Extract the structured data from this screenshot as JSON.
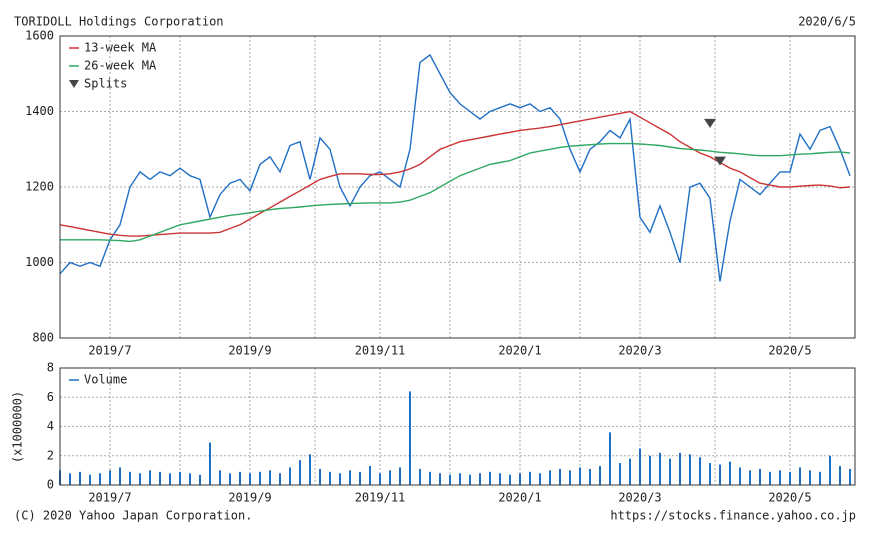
{
  "chart_data": [
    {
      "type": "line",
      "title": "TORIDOLL Holdings Corporation",
      "subtitle": "2020/6/5",
      "categories": [
        null,
        null,
        null,
        null,
        null,
        "2019/7",
        null,
        null,
        null,
        null,
        null,
        null,
        null,
        null,
        null,
        null,
        null,
        null,
        null,
        "2019/9",
        null,
        null,
        null,
        null,
        null,
        null,
        null,
        null,
        null,
        null,
        null,
        null,
        "2019/11",
        null,
        null,
        null,
        null,
        null,
        null,
        null,
        null,
        null,
        null,
        null,
        null,
        null,
        "2020/1",
        null,
        null,
        null,
        null,
        null,
        null,
        null,
        null,
        null,
        null,
        null,
        "2020/3",
        null,
        null,
        null,
        null,
        null,
        null,
        null,
        null,
        null,
        null,
        null,
        null,
        null,
        null,
        "2020/5",
        null,
        null,
        null,
        null,
        null,
        null
      ],
      "series": [
        {
          "color": "#1f6fc5",
          "values": [
            970,
            1000,
            990,
            1000,
            990,
            1060,
            1100,
            1200,
            1240,
            1220,
            1240,
            1230,
            1250,
            1230,
            1220,
            1120,
            1180,
            1210,
            1220,
            1190,
            1260,
            1280,
            1240,
            1310,
            1320,
            1220,
            1330,
            1300,
            1200,
            1150,
            1200,
            1230,
            1240,
            1220,
            1200,
            1300,
            1530,
            1550,
            1500,
            1450,
            1420,
            1400,
            1380,
            1400,
            1410,
            1420,
            1410,
            1420,
            1400,
            1410,
            1380,
            1300,
            1240,
            1300,
            1320,
            1350,
            1330,
            1380,
            1120,
            1080,
            1150,
            1080,
            1000,
            1200,
            1210,
            1170,
            950,
            1110,
            1220,
            1200,
            1180,
            1210,
            1240,
            1240,
            1340,
            1300,
            1350,
            1360,
            1300,
            1230
          ]
        },
        {
          "name": "13-week MA",
          "color": "#cc3333",
          "values": [
            1100,
            1095,
            1090,
            1085,
            1080,
            1075,
            1072,
            1070,
            1070,
            1072,
            1074,
            1076,
            1078,
            1078,
            1078,
            1078,
            1080,
            1090,
            1100,
            1115,
            1130,
            1145,
            1160,
            1175,
            1190,
            1205,
            1220,
            1228,
            1235,
            1235,
            1235,
            1233,
            1233,
            1235,
            1240,
            1248,
            1260,
            1280,
            1300,
            1310,
            1320,
            1325,
            1330,
            1335,
            1340,
            1345,
            1350,
            1353,
            1356,
            1360,
            1365,
            1370,
            1375,
            1380,
            1385,
            1390,
            1395,
            1400,
            1385,
            1370,
            1355,
            1340,
            1320,
            1305,
            1290,
            1280,
            1265,
            1250,
            1240,
            1225,
            1210,
            1205,
            1200,
            1200,
            1202,
            1204,
            1205,
            1203,
            1198,
            1200
          ]
        },
        {
          "name": "26-week MA",
          "color": "#2fa860",
          "values": [
            1060,
            1060,
            1060,
            1060,
            1060,
            1059,
            1058,
            1056,
            1060,
            1070,
            1080,
            1090,
            1100,
            1105,
            1110,
            1115,
            1120,
            1125,
            1128,
            1132,
            1136,
            1140,
            1143,
            1145,
            1147,
            1150,
            1152,
            1154,
            1155,
            1156,
            1157,
            1158,
            1158,
            1158,
            1160,
            1165,
            1175,
            1185,
            1200,
            1215,
            1230,
            1240,
            1250,
            1260,
            1265,
            1270,
            1280,
            1290,
            1295,
            1300,
            1305,
            1308,
            1310,
            1312,
            1314,
            1315,
            1315,
            1315,
            1314,
            1312,
            1310,
            1306,
            1302,
            1300,
            1298,
            1295,
            1292,
            1290,
            1288,
            1285,
            1283,
            1283,
            1283,
            1285,
            1287,
            1288,
            1290,
            1292,
            1293,
            1290
          ]
        },
        {
          "name": "Splits",
          "color": "#444444",
          "marker": "triangle",
          "values": [
            null,
            null,
            null,
            null,
            null,
            null,
            null,
            null,
            null,
            null,
            null,
            null,
            null,
            null,
            null,
            null,
            null,
            null,
            null,
            null,
            null,
            null,
            null,
            null,
            null,
            null,
            null,
            null,
            null,
            null,
            null,
            null,
            null,
            null,
            null,
            null,
            null,
            null,
            null,
            null,
            null,
            null,
            null,
            null,
            null,
            null,
            null,
            null,
            null,
            null,
            null,
            null,
            null,
            null,
            null,
            null,
            null,
            null,
            null,
            null,
            null,
            null,
            null,
            null,
            null,
            1370,
            1270,
            null,
            null,
            null,
            null,
            null,
            null,
            null,
            null,
            null,
            null,
            null,
            null,
            null
          ]
        }
      ],
      "ylim": [
        800,
        1600
      ],
      "yticks": [
        800,
        1000,
        1200,
        1400,
        1600
      ],
      "grid": true,
      "legend": "top-left"
    },
    {
      "type": "bar",
      "y_label": "(x1000000)",
      "series": [
        {
          "name": "Volume",
          "color": "#1f6fc5",
          "values": [
            1.0,
            0.8,
            0.9,
            0.7,
            0.8,
            1.0,
            1.2,
            0.9,
            0.8,
            1.0,
            0.9,
            0.8,
            0.9,
            0.8,
            0.7,
            2.9,
            1.0,
            0.8,
            0.9,
            0.8,
            0.9,
            1.0,
            0.8,
            1.2,
            1.7,
            2.1,
            1.1,
            0.9,
            0.8,
            1.0,
            0.9,
            1.3,
            0.8,
            1.0,
            1.2,
            6.4,
            1.1,
            0.9,
            0.8,
            0.7,
            0.8,
            0.7,
            0.8,
            0.9,
            0.8,
            0.7,
            0.8,
            0.9,
            0.8,
            1.0,
            1.1,
            1.0,
            1.2,
            1.1,
            1.3,
            3.6,
            1.5,
            1.8,
            2.5,
            2.0,
            2.2,
            1.8,
            2.2,
            2.1,
            1.9,
            1.5,
            1.4,
            1.6,
            1.2,
            1.0,
            1.1,
            0.9,
            1.0,
            0.9,
            1.2,
            1.0,
            0.9,
            2.0,
            1.3,
            1.1
          ]
        }
      ],
      "ylim": [
        0,
        8
      ],
      "yticks": [
        0,
        2,
        4,
        6,
        8
      ],
      "grid": true,
      "legend": "top-left"
    }
  ],
  "footer": {
    "copyright": "(C) 2020 Yahoo Japan Corporation.",
    "url": "https://stocks.finance.yahoo.co.jp"
  }
}
